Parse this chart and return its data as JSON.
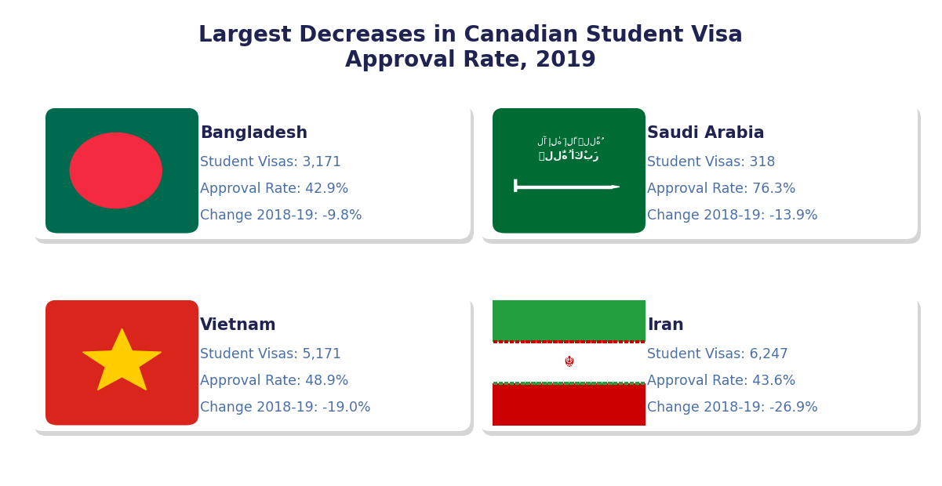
{
  "title_line1": "Largest Decreases in Canadian Student Visa",
  "title_line2": "Approval Rate, 2019",
  "title_color": "#1e2352",
  "title_fontsize": 20,
  "background_color": "#ffffff",
  "countries": [
    {
      "name": "Bangladesh",
      "visas": "3,171",
      "approval_rate": "42.9%",
      "change": "-9.8%",
      "flag": "bangladesh",
      "col": 0,
      "row": 0
    },
    {
      "name": "Saudi Arabia",
      "visas": "318",
      "approval_rate": "76.3%",
      "change": "-13.9%",
      "flag": "saudi_arabia",
      "col": 1,
      "row": 0
    },
    {
      "name": "Vietnam",
      "visas": "5,171",
      "approval_rate": "48.9%",
      "change": "-19.0%",
      "flag": "vietnam",
      "col": 0,
      "row": 1
    },
    {
      "name": "Iran",
      "visas": "6,247",
      "approval_rate": "43.6%",
      "change": "-26.9%",
      "flag": "iran",
      "col": 1,
      "row": 1
    }
  ],
  "text_color_name": "#1e2352",
  "text_color_detail": "#4a6fa5",
  "name_fontsize": 15,
  "detail_fontsize": 12.5,
  "shadow_color": "#cccccc",
  "flag_green_bangladesh": "#006A4E",
  "flag_red_bangladesh": "#F42A41",
  "flag_green_saudi": "#006C35",
  "flag_green_vietnam": "#DA251D",
  "flag_yellow_vietnam": "#FFCD00",
  "flag_green_iran": "#239f40",
  "flag_white_iran": "#ffffff",
  "flag_red_iran": "#cc0001"
}
